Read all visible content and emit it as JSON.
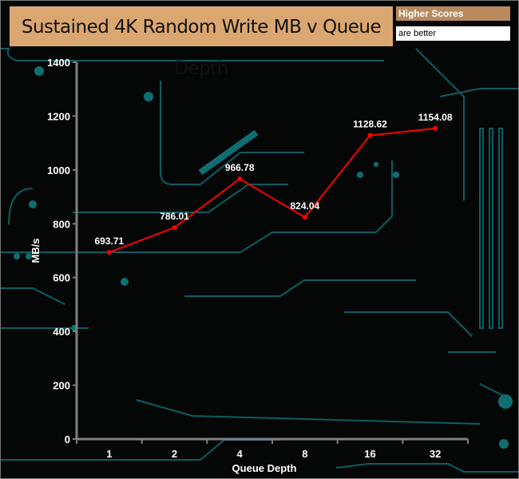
{
  "chart_data": {
    "type": "line",
    "title": "Sustained 4K Random Write MB v Queue Depth",
    "note": [
      "Higher Scores",
      "are better"
    ],
    "xlabel": "Queue Depth",
    "ylabel": "MB/s",
    "categories": [
      "1",
      "2",
      "4",
      "8",
      "16",
      "32"
    ],
    "values": [
      693.71,
      786.01,
      966.78,
      824.04,
      1128.62,
      1154.08
    ],
    "ylim": [
      0,
      1400
    ],
    "yticks": [
      0,
      200,
      400,
      600,
      800,
      1000,
      1200,
      1400
    ],
    "grid": false,
    "line_color": "#ff0000",
    "axis_color": "#808080",
    "background_color": "#050707",
    "decoration_color": "#0e6f73"
  }
}
